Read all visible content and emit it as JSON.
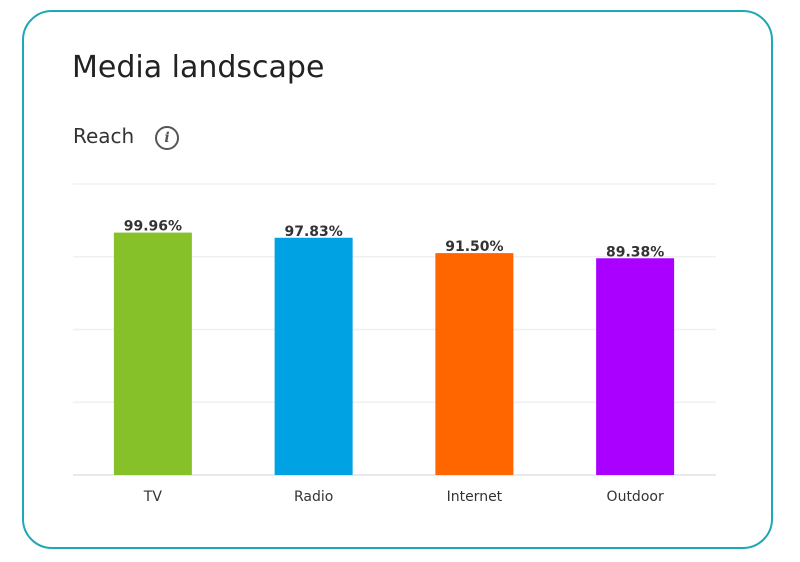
{
  "card": {
    "title": "Media landscape",
    "subtitle": "Reach",
    "info_icon": "info-icon"
  },
  "chart_data": {
    "type": "bar",
    "categories": [
      "TV",
      "Radio",
      "Internet",
      "Outdoor"
    ],
    "values": [
      99.96,
      97.83,
      91.5,
      89.38
    ],
    "data_labels": [
      "99.96%",
      "97.83%",
      "91.50%",
      "89.38%"
    ],
    "colors": [
      "#86c12a",
      "#00a2e3",
      "#ff6600",
      "#aa00ff"
    ],
    "ylim": [
      0,
      120
    ],
    "gridlines": [
      0,
      30,
      60,
      90,
      120
    ],
    "grid": true,
    "y_tick_labels_shown": false,
    "legend": "none"
  }
}
